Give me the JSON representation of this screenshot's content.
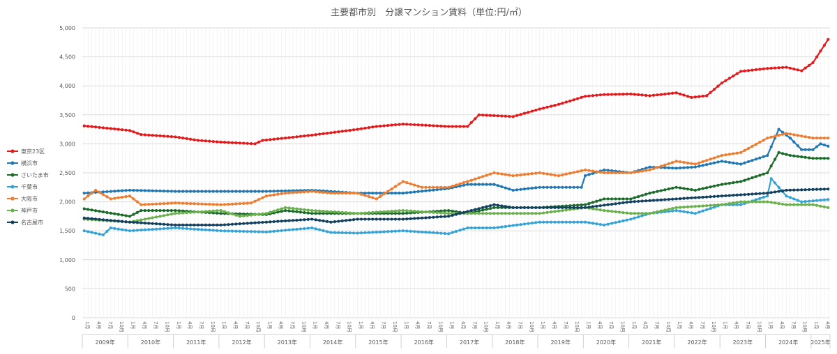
{
  "chart_data": {
    "type": "line",
    "title": "主要都市別　分譲マンション賃料（単位:円/㎡）",
    "unit": "円/㎡",
    "ylim": [
      0,
      5000
    ],
    "y_ticks": [
      0,
      500,
      1000,
      1500,
      2000,
      2500,
      3000,
      3500,
      4000,
      4500,
      5000
    ],
    "y_tick_labels": [
      "0",
      "500",
      "1,000",
      "1,500",
      "2,000",
      "2,500",
      "3,000",
      "3,500",
      "4,000",
      "4,500",
      "5,000"
    ],
    "grid": true,
    "legend_position": "left",
    "start": "2009-01",
    "end": "2025-05",
    "month_tick_labels": [
      "1月",
      "4月",
      "7月",
      "10月"
    ],
    "year_labels": [
      "2009年",
      "2010年",
      "2011年",
      "2012年",
      "2013年",
      "2014年",
      "2015年",
      "2016年",
      "2017年",
      "2018年",
      "2019年",
      "2020年",
      "2021年",
      "2022年",
      "2023年",
      "2024年",
      "2025年"
    ],
    "series": [
      {
        "name": "東京23区",
        "color": "#e31a1c",
        "anchors": [
          [
            "2009-01",
            3310
          ],
          [
            "2010-01",
            3230
          ],
          [
            "2010-04",
            3160
          ],
          [
            "2011-01",
            3120
          ],
          [
            "2011-07",
            3060
          ],
          [
            "2012-01",
            3030
          ],
          [
            "2012-10",
            3000
          ],
          [
            "2012-12",
            3060
          ],
          [
            "2013-06",
            3100
          ],
          [
            "2014-01",
            3150
          ],
          [
            "2015-01",
            3250
          ],
          [
            "2015-06",
            3300
          ],
          [
            "2016-01",
            3340
          ],
          [
            "2017-01",
            3300
          ],
          [
            "2017-06",
            3300
          ],
          [
            "2017-09",
            3500
          ],
          [
            "2018-06",
            3470
          ],
          [
            "2019-01",
            3600
          ],
          [
            "2019-06",
            3680
          ],
          [
            "2020-01",
            3820
          ],
          [
            "2020-06",
            3850
          ],
          [
            "2021-01",
            3860
          ],
          [
            "2021-06",
            3830
          ],
          [
            "2022-01",
            3880
          ],
          [
            "2022-05",
            3800
          ],
          [
            "2022-09",
            3830
          ],
          [
            "2023-01",
            4050
          ],
          [
            "2023-06",
            4250
          ],
          [
            "2024-01",
            4300
          ],
          [
            "2024-06",
            4320
          ],
          [
            "2024-10",
            4260
          ],
          [
            "2025-01",
            4400
          ],
          [
            "2025-05",
            4800
          ]
        ]
      },
      {
        "name": "横浜市",
        "color": "#1f77b4",
        "anchors": [
          [
            "2009-01",
            2150
          ],
          [
            "2010-01",
            2200
          ],
          [
            "2011-01",
            2180
          ],
          [
            "2012-01",
            2180
          ],
          [
            "2013-01",
            2180
          ],
          [
            "2014-01",
            2200
          ],
          [
            "2015-01",
            2150
          ],
          [
            "2016-01",
            2150
          ],
          [
            "2017-01",
            2230
          ],
          [
            "2017-06",
            2300
          ],
          [
            "2018-01",
            2300
          ],
          [
            "2018-06",
            2200
          ],
          [
            "2019-01",
            2250
          ],
          [
            "2019-06",
            2250
          ],
          [
            "2019-12",
            2250
          ],
          [
            "2020-01",
            2450
          ],
          [
            "2020-06",
            2550
          ],
          [
            "2021-01",
            2500
          ],
          [
            "2021-06",
            2600
          ],
          [
            "2022-01",
            2580
          ],
          [
            "2022-06",
            2600
          ],
          [
            "2023-01",
            2700
          ],
          [
            "2023-06",
            2650
          ],
          [
            "2024-01",
            2800
          ],
          [
            "2024-04",
            3250
          ],
          [
            "2024-07",
            3100
          ],
          [
            "2024-10",
            2900
          ],
          [
            "2025-01",
            2900
          ],
          [
            "2025-03",
            3000
          ],
          [
            "2025-05",
            2960
          ]
        ]
      },
      {
        "name": "さいたま市",
        "color": "#1b6b2a",
        "anchors": [
          [
            "2009-01",
            1880
          ],
          [
            "2010-01",
            1750
          ],
          [
            "2010-04",
            1850
          ],
          [
            "2011-01",
            1850
          ],
          [
            "2012-01",
            1800
          ],
          [
            "2013-01",
            1780
          ],
          [
            "2013-06",
            1850
          ],
          [
            "2014-01",
            1800
          ],
          [
            "2015-01",
            1800
          ],
          [
            "2016-01",
            1800
          ],
          [
            "2017-01",
            1850
          ],
          [
            "2017-06",
            1800
          ],
          [
            "2018-01",
            1900
          ],
          [
            "2019-01",
            1900
          ],
          [
            "2020-01",
            1950
          ],
          [
            "2020-06",
            2050
          ],
          [
            "2021-01",
            2050
          ],
          [
            "2021-06",
            2150
          ],
          [
            "2022-01",
            2250
          ],
          [
            "2022-06",
            2200
          ],
          [
            "2023-01",
            2300
          ],
          [
            "2023-06",
            2350
          ],
          [
            "2024-01",
            2500
          ],
          [
            "2024-04",
            2850
          ],
          [
            "2024-07",
            2800
          ],
          [
            "2025-01",
            2750
          ],
          [
            "2025-05",
            2750
          ]
        ]
      },
      {
        "name": "千葉市",
        "color": "#36a3d6",
        "anchors": [
          [
            "2009-01",
            1500
          ],
          [
            "2009-06",
            1430
          ],
          [
            "2009-08",
            1550
          ],
          [
            "2010-01",
            1500
          ],
          [
            "2011-01",
            1550
          ],
          [
            "2012-01",
            1500
          ],
          [
            "2013-01",
            1480
          ],
          [
            "2014-01",
            1550
          ],
          [
            "2014-06",
            1470
          ],
          [
            "2015-01",
            1460
          ],
          [
            "2016-01",
            1500
          ],
          [
            "2017-01",
            1450
          ],
          [
            "2017-06",
            1550
          ],
          [
            "2018-01",
            1550
          ],
          [
            "2019-01",
            1650
          ],
          [
            "2020-01",
            1650
          ],
          [
            "2020-06",
            1600
          ],
          [
            "2021-01",
            1700
          ],
          [
            "2021-06",
            1800
          ],
          [
            "2022-01",
            1850
          ],
          [
            "2022-06",
            1800
          ],
          [
            "2023-01",
            1950
          ],
          [
            "2023-06",
            1950
          ],
          [
            "2024-01",
            2100
          ],
          [
            "2024-02",
            2400
          ],
          [
            "2024-06",
            2100
          ],
          [
            "2024-10",
            2000
          ],
          [
            "2025-05",
            2040
          ]
        ]
      },
      {
        "name": "大阪市",
        "color": "#ed7d31",
        "anchors": [
          [
            "2009-01",
            2050
          ],
          [
            "2009-04",
            2200
          ],
          [
            "2009-08",
            2050
          ],
          [
            "2010-01",
            2100
          ],
          [
            "2010-04",
            1950
          ],
          [
            "2011-01",
            1980
          ],
          [
            "2012-01",
            1950
          ],
          [
            "2012-09",
            1980
          ],
          [
            "2013-01",
            2100
          ],
          [
            "2013-06",
            2150
          ],
          [
            "2014-01",
            2180
          ],
          [
            "2014-06",
            2150
          ],
          [
            "2015-01",
            2150
          ],
          [
            "2015-06",
            2050
          ],
          [
            "2016-01",
            2350
          ],
          [
            "2016-06",
            2250
          ],
          [
            "2017-01",
            2250
          ],
          [
            "2017-06",
            2350
          ],
          [
            "2018-01",
            2500
          ],
          [
            "2018-06",
            2450
          ],
          [
            "2019-01",
            2500
          ],
          [
            "2019-06",
            2450
          ],
          [
            "2020-01",
            2550
          ],
          [
            "2020-06",
            2500
          ],
          [
            "2021-01",
            2500
          ],
          [
            "2021-06",
            2550
          ],
          [
            "2022-01",
            2700
          ],
          [
            "2022-06",
            2650
          ],
          [
            "2023-01",
            2800
          ],
          [
            "2023-06",
            2850
          ],
          [
            "2024-01",
            3100
          ],
          [
            "2024-06",
            3180
          ],
          [
            "2025-01",
            3100
          ],
          [
            "2025-05",
            3100
          ]
        ]
      },
      {
        "name": "神戸市",
        "color": "#6ab04c",
        "anchors": [
          [
            "2009-01",
            1700
          ],
          [
            "2010-01",
            1650
          ],
          [
            "2011-01",
            1800
          ],
          [
            "2012-01",
            1850
          ],
          [
            "2012-06",
            1750
          ],
          [
            "2013-01",
            1800
          ],
          [
            "2013-06",
            1900
          ],
          [
            "2014-01",
            1850
          ],
          [
            "2015-01",
            1800
          ],
          [
            "2016-01",
            1850
          ],
          [
            "2017-01",
            1800
          ],
          [
            "2018-01",
            1800
          ],
          [
            "2019-01",
            1800
          ],
          [
            "2020-01",
            1900
          ],
          [
            "2020-06",
            1850
          ],
          [
            "2021-01",
            1800
          ],
          [
            "2021-06",
            1800
          ],
          [
            "2022-01",
            1900
          ],
          [
            "2023-01",
            1950
          ],
          [
            "2023-06",
            2000
          ],
          [
            "2024-01",
            2000
          ],
          [
            "2024-06",
            1950
          ],
          [
            "2025-01",
            1950
          ],
          [
            "2025-05",
            1900
          ]
        ]
      },
      {
        "name": "名古屋市",
        "color": "#13405f",
        "anchors": [
          [
            "2009-01",
            1720
          ],
          [
            "2010-01",
            1650
          ],
          [
            "2011-01",
            1600
          ],
          [
            "2012-01",
            1600
          ],
          [
            "2013-01",
            1650
          ],
          [
            "2014-01",
            1700
          ],
          [
            "2014-06",
            1650
          ],
          [
            "2015-01",
            1700
          ],
          [
            "2016-01",
            1700
          ],
          [
            "2017-01",
            1750
          ],
          [
            "2018-01",
            1950
          ],
          [
            "2018-06",
            1900
          ],
          [
            "2019-01",
            1900
          ],
          [
            "2020-01",
            1900
          ],
          [
            "2021-01",
            2000
          ],
          [
            "2022-01",
            2050
          ],
          [
            "2023-01",
            2100
          ],
          [
            "2024-01",
            2150
          ],
          [
            "2024-06",
            2200
          ],
          [
            "2025-05",
            2220
          ]
        ]
      }
    ]
  }
}
